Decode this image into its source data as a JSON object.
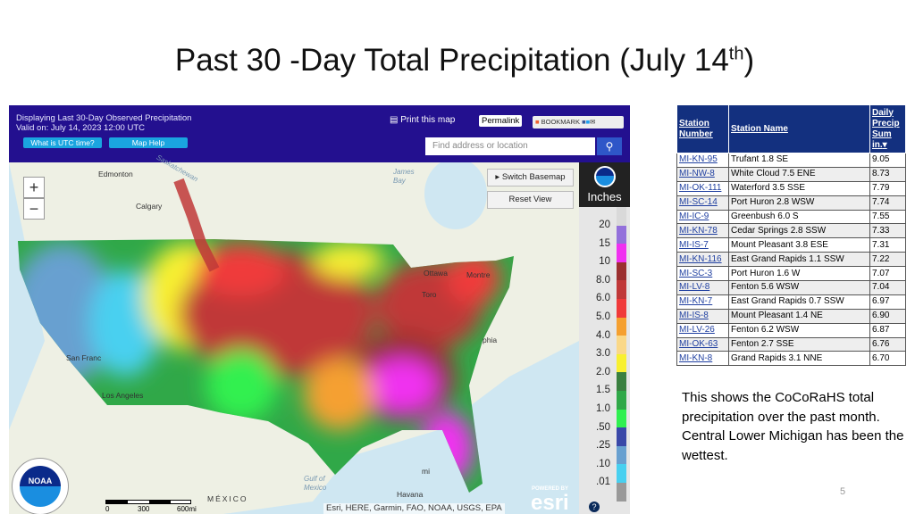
{
  "slide": {
    "title": "Past 30 -Day Total Precipitation (July 14",
    "title_sup": "th",
    "title_end": ")",
    "note": "This shows the CoCoRaHS total precipitation over the past month.  Central Lower Michigan has been the wettest.",
    "page_number": "5"
  },
  "map": {
    "header_line1": "Displaying Last 30-Day Observed Precipitation",
    "header_line2": "Valid on: July 14, 2023 12:00 UTC",
    "utc_button": "What is UTC time?",
    "help_button": "Map Help",
    "print_label": "Print this map",
    "permalink_label": "Permalink",
    "bookmark_label": "BOOKMARK",
    "search_placeholder": "Find address or location",
    "switch_basemap": "Switch Basemap",
    "reset_view": "Reset View",
    "zoom_in": "+",
    "zoom_out": "−",
    "units": "Inches",
    "legend": [
      {
        "label": "20",
        "color": "#d9d9d9"
      },
      {
        "label": "15",
        "color": "#9370db"
      },
      {
        "label": "10",
        "color": "#f030f0"
      },
      {
        "label": "8.0",
        "color": "#9b3030"
      },
      {
        "label": "6.0",
        "color": "#c03838"
      },
      {
        "label": "5.0",
        "color": "#f03a3a"
      },
      {
        "label": "4.0",
        "color": "#f5a030"
      },
      {
        "label": "3.0",
        "color": "#fad888"
      },
      {
        "label": "2.0",
        "color": "#f8f030"
      },
      {
        "label": "1.5",
        "color": "#3a8040"
      },
      {
        "label": "1.0",
        "color": "#30a848"
      },
      {
        "label": ".50",
        "color": "#30f050"
      },
      {
        "label": ".25",
        "color": "#3a48a8"
      },
      {
        "label": ".10",
        "color": "#68a0d0"
      },
      {
        "label": ".01",
        "color": "#48d0f0"
      },
      {
        "label": "",
        "color": "#999999"
      }
    ],
    "places": {
      "edmonton": "Edmonton",
      "calgary": "Calgary",
      "saskatchewan": "Saskatchewan",
      "james_bay": "James Bay",
      "ottawa": "Ottawa",
      "montreal": "Montre",
      "toronto": "Toro",
      "san_francisco": "San Franc",
      "los_angeles": "Los Angeles",
      "mexico": "MÉXICO",
      "gulf": "Gulf of Mexico",
      "havana": "Havana",
      "miami": "mi",
      "phila": "phia"
    },
    "scale": {
      "s0": "0",
      "s1": "300",
      "s2": "600mi"
    },
    "attribution": "Esri, HERE, Garmin, FAO, NOAA, USGS, EPA",
    "esri_powered": "POWERED BY",
    "esri": "esri"
  },
  "table": {
    "headers": [
      "Station Number",
      "Station Name",
      "Daily Precip Sum in."
    ],
    "rows": [
      [
        "MI-KN-95",
        "Trufant 1.8 SE",
        "9.05"
      ],
      [
        "MI-NW-8",
        "White Cloud 7.5 ENE",
        "8.73"
      ],
      [
        "MI-OK-111",
        "Waterford 3.5 SSE",
        "7.79"
      ],
      [
        "MI-SC-14",
        "Port Huron 2.8 WSW",
        "7.74"
      ],
      [
        "MI-IC-9",
        "Greenbush 6.0 S",
        "7.55"
      ],
      [
        "MI-KN-78",
        "Cedar Springs 2.8 SSW",
        "7.33"
      ],
      [
        "MI-IS-7",
        "Mount Pleasant 3.8 ESE",
        "7.31"
      ],
      [
        "MI-KN-116",
        "East Grand Rapids 1.1 SSW",
        "7.22"
      ],
      [
        "MI-SC-3",
        "Port Huron 1.6 W",
        "7.07"
      ],
      [
        "MI-LV-8",
        "Fenton 5.6 WSW",
        "7.04"
      ],
      [
        "MI-KN-7",
        "East Grand Rapids 0.7 SSW",
        "6.97"
      ],
      [
        "MI-IS-8",
        "Mount Pleasant 1.4 NE",
        "6.90"
      ],
      [
        "MI-LV-26",
        "Fenton 6.2 WSW",
        "6.87"
      ],
      [
        "MI-OK-63",
        "Fenton 2.7 SSE",
        "6.76"
      ],
      [
        "MI-KN-8",
        "Grand Rapids 3.1 NNE",
        "6.70"
      ]
    ]
  }
}
